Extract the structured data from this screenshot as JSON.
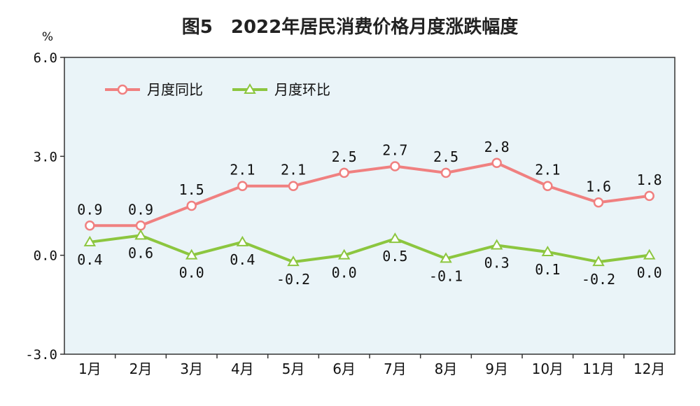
{
  "title": "图5　2022年居民消费价格月度涨跌幅度",
  "chart_data": {
    "type": "line",
    "title": "图5　2022年居民消费价格月度涨跌幅度",
    "ylabel": "%",
    "xlabel": "",
    "ylim": [
      -3.0,
      6.0
    ],
    "yticks": [
      -3.0,
      0.0,
      3.0,
      6.0
    ],
    "ytick_labels": [
      "-3.0",
      "0.0",
      "3.0",
      "6.0"
    ],
    "categories": [
      "1月",
      "2月",
      "3月",
      "4月",
      "5月",
      "6月",
      "7月",
      "8月",
      "9月",
      "10月",
      "11月",
      "12月"
    ],
    "series": [
      {
        "name": "月度同比",
        "color": "#f08080",
        "marker": "circle",
        "values": [
          0.9,
          0.9,
          1.5,
          2.1,
          2.1,
          2.5,
          2.7,
          2.5,
          2.8,
          2.1,
          1.6,
          1.8
        ],
        "labels": [
          "0.9",
          "0.9",
          "1.5",
          "2.1",
          "2.1",
          "2.5",
          "2.7",
          "2.5",
          "2.8",
          "2.1",
          "1.6",
          "1.8"
        ]
      },
      {
        "name": "月度环比",
        "color": "#8cc63f",
        "marker": "triangle",
        "values": [
          0.4,
          0.6,
          0.0,
          0.4,
          -0.2,
          0.0,
          0.5,
          -0.1,
          0.3,
          0.1,
          -0.2,
          0.0
        ],
        "labels": [
          "0.4",
          "0.6",
          "0.0",
          "0.4",
          "-0.2",
          "0.0",
          "0.5",
          "-0.1",
          "0.3",
          "0.1",
          "-0.2",
          "0.0"
        ]
      }
    ],
    "plot_background": "#eaf4f8",
    "grid": false,
    "legend_position": "top-left"
  }
}
